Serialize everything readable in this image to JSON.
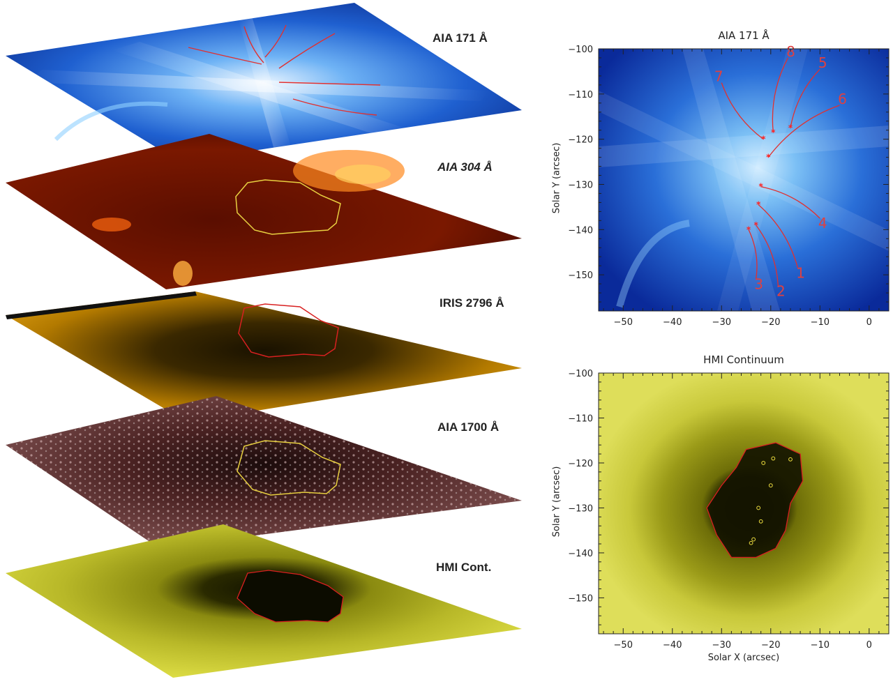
{
  "stack": {
    "layers": [
      {
        "label": "AIA 171 Å",
        "italic": false
      },
      {
        "label": "AIA 304 Å",
        "italic": true
      },
      {
        "label": "IRIS 2796 Å",
        "italic": false
      },
      {
        "label": "AIA 1700 Å",
        "italic": false
      },
      {
        "label": "HMI Cont.",
        "italic": false
      }
    ]
  },
  "panels": [
    {
      "title": "AIA 171 Å",
      "xlabel": "",
      "ylabel": "Solar Y (arcsec)",
      "xlim": [
        -55,
        4
      ],
      "ylim": [
        -158,
        -100
      ],
      "xticks": [
        -50,
        -40,
        -30,
        -20,
        -10,
        0
      ],
      "yticks": [
        -100,
        -110,
        -120,
        -130,
        -140,
        -150
      ],
      "loops": [
        {
          "label": "1",
          "footpoint": [
            -22.5,
            -134.5
          ],
          "label_pos": [
            -14.5,
            -148.5
          ]
        },
        {
          "label": "2",
          "footpoint": [
            -23.0,
            -139.0
          ],
          "label_pos": [
            -18.5,
            -152.5
          ]
        },
        {
          "label": "3",
          "footpoint": [
            -24.5,
            -140.0
          ],
          "label_pos": [
            -23.0,
            -151.0
          ]
        },
        {
          "label": "4",
          "footpoint": [
            -22.0,
            -130.5
          ],
          "label_pos": [
            -10.0,
            -137.5
          ]
        },
        {
          "label": "5",
          "footpoint": [
            -16.0,
            -117.5
          ],
          "label_pos": [
            -10.0,
            -104.5
          ]
        },
        {
          "label": "6",
          "footpoint": [
            -20.5,
            -124.0
          ],
          "label_pos": [
            -6.0,
            -112.5
          ]
        },
        {
          "label": "7",
          "footpoint": [
            -21.5,
            -120.0
          ],
          "label_pos": [
            -30.0,
            -107.5
          ]
        },
        {
          "label": "8",
          "footpoint": [
            -19.5,
            -118.5
          ],
          "label_pos": [
            -16.5,
            -102.0
          ]
        }
      ]
    },
    {
      "title": "HMI Continuum",
      "xlabel": "Solar X (arcsec)",
      "ylabel": "Solar Y (arcsec)",
      "xlim": [
        -55,
        4
      ],
      "ylim": [
        -158,
        -100
      ],
      "xticks": [
        -50,
        -40,
        -30,
        -20,
        -10,
        0
      ],
      "yticks": [
        -100,
        -110,
        -120,
        -130,
        -140,
        -150
      ],
      "footpoints": [
        [
          -21.5,
          -120.0
        ],
        [
          -19.5,
          -119.0
        ],
        [
          -16.0,
          -119.2
        ],
        [
          -20.0,
          -125.0
        ],
        [
          -22.5,
          -130.0
        ],
        [
          -22.0,
          -133.0
        ],
        [
          -23.5,
          -137.0
        ],
        [
          -24.0,
          -137.8
        ]
      ]
    }
  ],
  "colors": {
    "loop_line": "#e03030",
    "umbra_contour_red": "#d82020",
    "umbra_contour_yellow": "#e8d040",
    "footpoint_circle": "#f0e040"
  }
}
